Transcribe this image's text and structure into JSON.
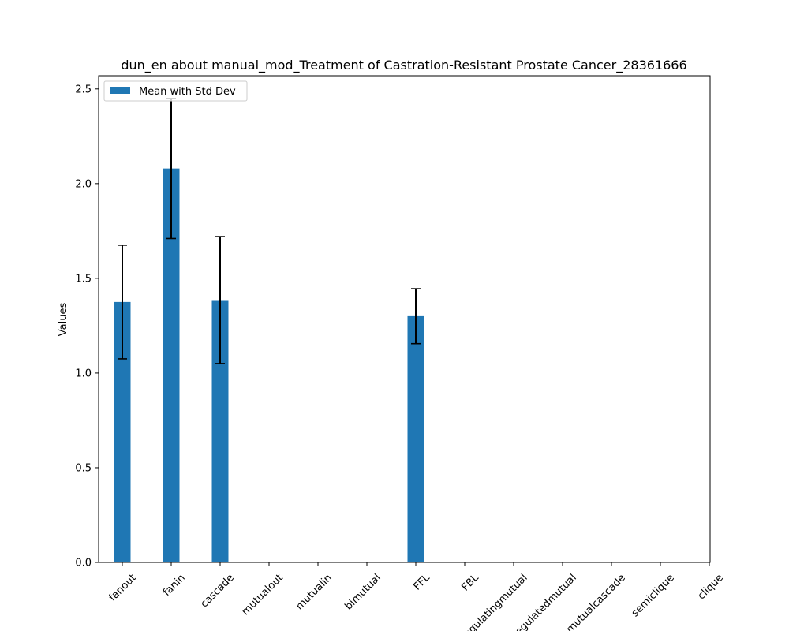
{
  "chart_data": {
    "type": "bar",
    "title": "dun_en about manual_mod_Treatment of Castration-Resistant Prostate Cancer_28361666",
    "xlabel": "",
    "ylabel": "Values",
    "categories": [
      "fanout",
      "fanin",
      "cascade",
      "mutualout",
      "mutualin",
      "bimutual",
      "FFL",
      "FBL",
      "regulatingmutual",
      "regulatedmutual",
      "mutualcascade",
      "semiclique",
      "clique"
    ],
    "series": [
      {
        "name": "Mean with Std Dev",
        "values": [
          1.375,
          2.08,
          1.385,
          0,
          0,
          0,
          1.3,
          0,
          0,
          0,
          0,
          0,
          0
        ],
        "std": [
          0.3,
          0.37,
          0.335,
          0,
          0,
          0,
          0.145,
          0,
          0,
          0,
          0,
          0,
          0
        ]
      }
    ],
    "ylim": [
      0,
      2.57
    ],
    "yticks": [
      0.0,
      0.5,
      1.0,
      1.5,
      2.0,
      2.5
    ],
    "ytick_labels": [
      "0.0",
      "0.5",
      "1.0",
      "1.5",
      "2.0",
      "2.5"
    ],
    "grid": false,
    "legend": {
      "position": "upper-left",
      "label": "Mean with Std Dev"
    },
    "colors": {
      "bar": "#1f77b4",
      "errorbar": "#000000"
    }
  }
}
